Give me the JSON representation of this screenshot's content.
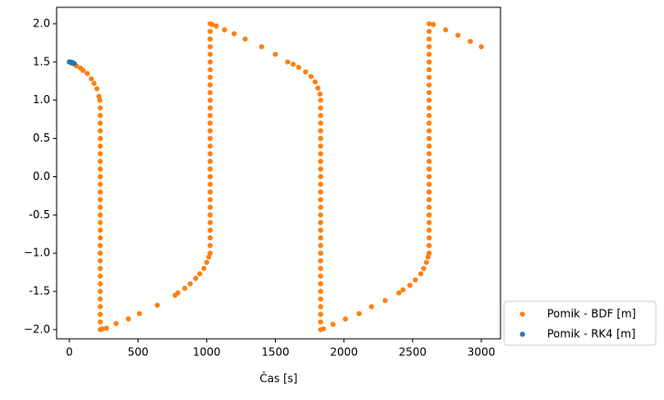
{
  "chart_data": {
    "type": "scatter",
    "xlabel": "Čas [s]",
    "xlim": [
      -93,
      3140
    ],
    "ylim": [
      -2.12,
      2.215
    ],
    "xticks": [
      0,
      500,
      1000,
      1500,
      2000,
      2500,
      3000
    ],
    "yticks": [
      {
        "value": -2.0,
        "label": "−2.0"
      },
      -1.5,
      {
        "value": -1.0,
        "label": "−1.0"
      },
      -0.5,
      {
        "value": 0.0,
        "label": "0.0"
      },
      0.5,
      {
        "value": 1.0,
        "label": "1.0"
      },
      1.5,
      {
        "value": 2.0,
        "label": "2.0"
      }
    ],
    "legend": "outside-lower-right",
    "series": [
      {
        "name": "Pomik - BDF [m]",
        "color": "#ff7f0e",
        "x": [
          0,
          20,
          50,
          80,
          100,
          130,
          160,
          180,
          200,
          215,
          222,
          225,
          225,
          225,
          225,
          225,
          225,
          225,
          225,
          225,
          225,
          225,
          225,
          225,
          225,
          225,
          225,
          225,
          225,
          225,
          225,
          225,
          225,
          225,
          225,
          225,
          225,
          225,
          225,
          225,
          225,
          240,
          270,
          340,
          430,
          510,
          640,
          770,
          790,
          840,
          880,
          920,
          950,
          980,
          1000,
          1015,
          1025,
          1025,
          1025,
          1025,
          1025,
          1025,
          1025,
          1025,
          1025,
          1025,
          1025,
          1025,
          1025,
          1025,
          1025,
          1025,
          1025,
          1025,
          1025,
          1025,
          1025,
          1025,
          1025,
          1025,
          1025,
          1025,
          1025,
          1025,
          1025,
          1025,
          1025,
          1040,
          1070,
          1130,
          1200,
          1280,
          1400,
          1500,
          1590,
          1630,
          1670,
          1720,
          1760,
          1790,
          1810,
          1825,
          1830,
          1830,
          1830,
          1830,
          1830,
          1830,
          1830,
          1830,
          1830,
          1830,
          1830,
          1830,
          1830,
          1830,
          1830,
          1830,
          1830,
          1830,
          1830,
          1830,
          1830,
          1830,
          1830,
          1830,
          1830,
          1830,
          1830,
          1830,
          1830,
          1830,
          1830,
          1850,
          1920,
          2010,
          2110,
          2200,
          2300,
          2400,
          2430,
          2480,
          2520,
          2560,
          2580,
          2600,
          2612,
          2620,
          2620,
          2620,
          2620,
          2620,
          2620,
          2620,
          2620,
          2620,
          2620,
          2620,
          2620,
          2620,
          2620,
          2620,
          2620,
          2620,
          2620,
          2620,
          2620,
          2620,
          2620,
          2620,
          2620,
          2620,
          2620,
          2620,
          2620,
          2620,
          2620,
          2620,
          2650,
          2740,
          2830,
          2920,
          3000
        ],
        "values": [
          1.5,
          1.48,
          1.45,
          1.42,
          1.39,
          1.35,
          1.28,
          1.22,
          1.15,
          1.05,
          1.0,
          0.9,
          0.8,
          0.7,
          0.6,
          0.5,
          0.4,
          0.3,
          0.2,
          0.1,
          0.0,
          -0.1,
          -0.2,
          -0.3,
          -0.4,
          -0.5,
          -0.6,
          -0.7,
          -0.8,
          -0.9,
          -1.0,
          -1.1,
          -1.2,
          -1.3,
          -1.4,
          -1.5,
          -1.6,
          -1.7,
          -1.8,
          -1.9,
          -2.0,
          -1.99,
          -1.98,
          -1.92,
          -1.86,
          -1.79,
          -1.68,
          -1.55,
          -1.52,
          -1.46,
          -1.4,
          -1.33,
          -1.27,
          -1.2,
          -1.12,
          -1.05,
          -1.0,
          -0.9,
          -0.8,
          -0.7,
          -0.6,
          -0.5,
          -0.4,
          -0.3,
          -0.2,
          -0.1,
          0.0,
          0.1,
          0.2,
          0.3,
          0.4,
          0.5,
          0.6,
          0.7,
          0.8,
          0.9,
          1.0,
          1.1,
          1.2,
          1.3,
          1.4,
          1.5,
          1.6,
          1.7,
          1.8,
          1.9,
          2.0,
          1.99,
          1.97,
          1.92,
          1.87,
          1.8,
          1.7,
          1.6,
          1.5,
          1.47,
          1.43,
          1.37,
          1.31,
          1.24,
          1.16,
          1.08,
          1.0,
          0.9,
          0.8,
          0.7,
          0.6,
          0.5,
          0.4,
          0.3,
          0.2,
          0.1,
          0.0,
          -0.1,
          -0.2,
          -0.3,
          -0.4,
          -0.5,
          -0.6,
          -0.7,
          -0.8,
          -0.9,
          -1.0,
          -1.1,
          -1.2,
          -1.3,
          -1.4,
          -1.5,
          -1.6,
          -1.7,
          -1.8,
          -1.9,
          -2.0,
          -1.99,
          -1.93,
          -1.86,
          -1.79,
          -1.7,
          -1.62,
          -1.52,
          -1.48,
          -1.42,
          -1.35,
          -1.27,
          -1.2,
          -1.12,
          -1.05,
          -1.0,
          -0.9,
          -0.8,
          -0.7,
          -0.6,
          -0.5,
          -0.4,
          -0.3,
          -0.2,
          -0.1,
          0.0,
          0.1,
          0.2,
          0.3,
          0.4,
          0.5,
          0.6,
          0.7,
          0.8,
          0.9,
          1.0,
          1.1,
          1.2,
          1.3,
          1.4,
          1.5,
          1.6,
          1.7,
          1.8,
          1.9,
          2.0,
          1.99,
          1.92,
          1.85,
          1.77,
          1.7
        ]
      },
      {
        "name": "Pomik - RK4 [m]",
        "color": "#1f77b4",
        "x": [
          0,
          5,
          10,
          15,
          20,
          25,
          30,
          35
        ],
        "values": [
          1.5,
          1.499,
          1.497,
          1.495,
          1.492,
          1.489,
          1.485,
          1.481
        ]
      }
    ]
  }
}
